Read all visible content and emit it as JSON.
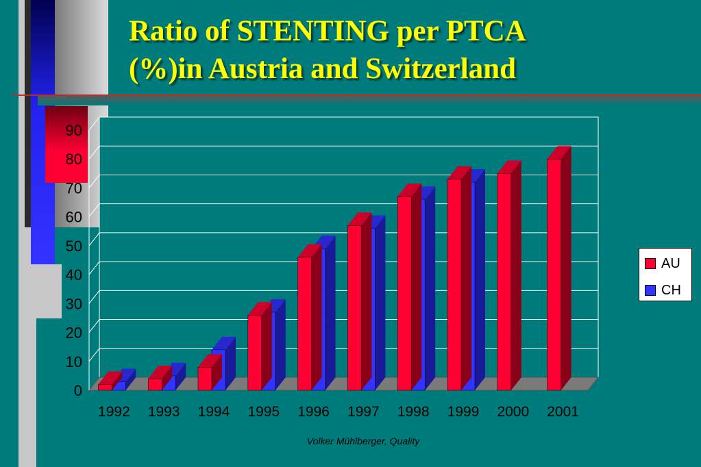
{
  "slide": {
    "title_line1": "Ratio of STENTING per PTCA",
    "title_line2": "(%)in Austria and Switzerland",
    "footer": "Volker Mühlberger, Quality"
  },
  "colors": {
    "background": "#007b7b",
    "title": "#ffff00",
    "au_bar": "#ff0033",
    "ch_bar": "#3333ff"
  },
  "chart_data": {
    "type": "bar",
    "categories": [
      "1992",
      "1993",
      "1994",
      "1995",
      "1996",
      "1997",
      "1998",
      "1999",
      "2000",
      "2001"
    ],
    "series": [
      {
        "name": "AU",
        "values": [
          2,
          4,
          8,
          26,
          46,
          57,
          67,
          73,
          75,
          80
        ]
      },
      {
        "name": "CH",
        "values": [
          3,
          5,
          14,
          27,
          49,
          56,
          66,
          72,
          null,
          null
        ]
      }
    ],
    "yticks": [
      "0",
      "10",
      "20",
      "30",
      "40",
      "50",
      "60",
      "70",
      "80",
      "90"
    ],
    "ylim": [
      0,
      90
    ],
    "grid": true,
    "legend": "right",
    "style": "3d"
  }
}
